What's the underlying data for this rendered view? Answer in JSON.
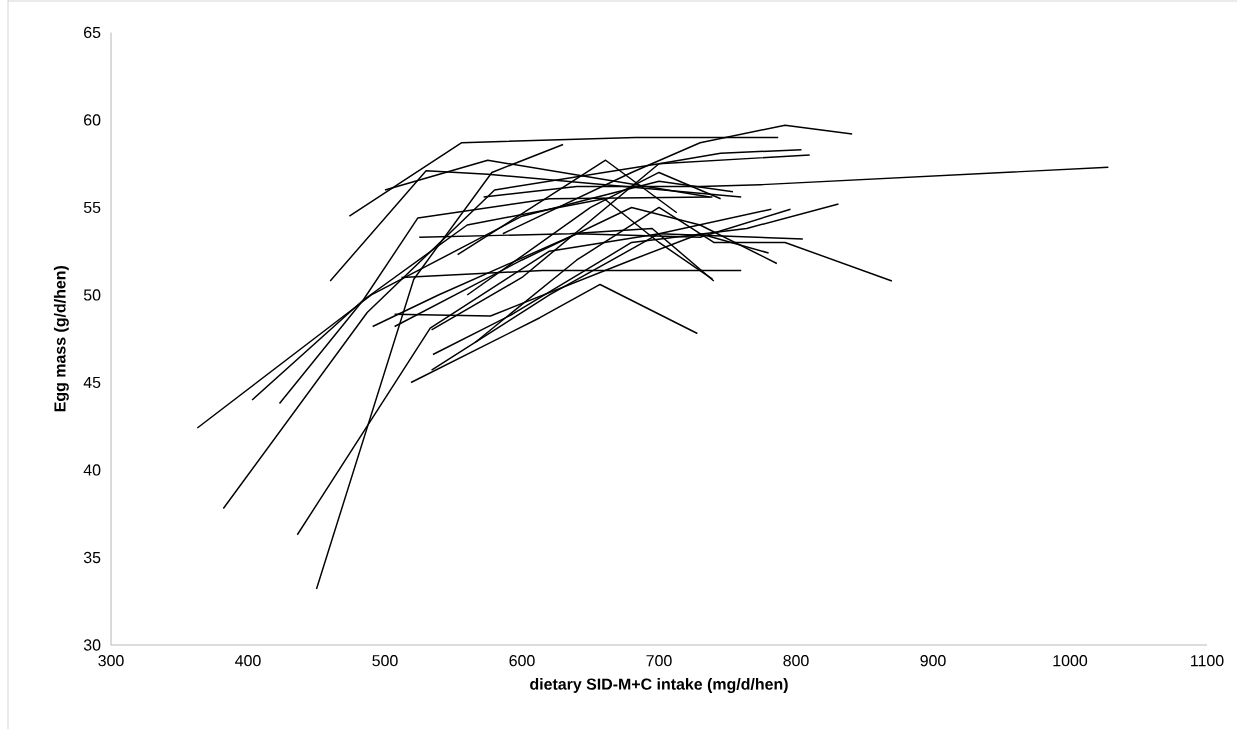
{
  "chart_data": {
    "type": "line",
    "xlabel": "dietary SID-M+C intake (mg/d/hen)",
    "ylabel": "Egg mass (g/d/hen)",
    "xlim": [
      300,
      1100
    ],
    "xticks": [
      300,
      400,
      500,
      600,
      700,
      800,
      900,
      1000,
      1100
    ],
    "ylim": [
      30,
      65
    ],
    "yticks": [
      30,
      35,
      40,
      45,
      50,
      55,
      60,
      65
    ],
    "marker": "none",
    "line_style": "solid",
    "series": [
      {
        "color": "#000000",
        "x": [
          363,
          490,
          600,
          700,
          754
        ],
        "values": [
          42.4,
          50.0,
          54.5,
          56.5,
          55.9
        ]
      },
      {
        "color": "#000000",
        "x": [
          403,
          484,
          524,
          620,
          739
        ],
        "values": [
          44.0,
          49.7,
          54.4,
          55.5,
          55.6
        ]
      },
      {
        "color": "#000000",
        "x": [
          382,
          487,
          580,
          700,
          810
        ],
        "values": [
          37.8,
          49.0,
          56.0,
          57.5,
          58.0
        ]
      },
      {
        "color": "#000000",
        "x": [
          436,
          533,
          620,
          700,
          782
        ],
        "values": [
          36.3,
          48.1,
          52.5,
          53.5,
          54.9
        ]
      },
      {
        "color": "#000000",
        "x": [
          450,
          521,
          578,
          630
        ],
        "values": [
          33.2,
          50.9,
          57.0,
          58.6
        ]
      },
      {
        "color": "#000000",
        "x": [
          474,
          556,
          683,
          787
        ],
        "values": [
          54.5,
          58.7,
          59.0,
          59.0
        ]
      },
      {
        "color": "#000000",
        "x": [
          500,
          575,
          737
        ],
        "values": [
          56.0,
          57.7,
          55.6
        ]
      },
      {
        "color": "#000000",
        "x": [
          460,
          530,
          575,
          760
        ],
        "values": [
          50.8,
          57.1,
          56.9,
          55.6
        ]
      },
      {
        "color": "#000000",
        "x": [
          491,
          539,
          640,
          730,
          796
        ],
        "values": [
          48.2,
          50.0,
          53.5,
          53.3,
          54.9
        ]
      },
      {
        "color": "#000000",
        "x": [
          507,
          577,
          680,
          730,
          780
        ],
        "values": [
          48.9,
          48.8,
          52.0,
          53.5,
          52.4
        ]
      },
      {
        "color": "#000000",
        "x": [
          507,
          600,
          680,
          730,
          786
        ],
        "values": [
          48.2,
          52.0,
          55.0,
          54.0,
          51.8
        ]
      },
      {
        "color": "#000000",
        "x": [
          535,
          593,
          680,
          764,
          831
        ],
        "values": [
          46.6,
          48.9,
          53.0,
          53.8,
          55.2
        ]
      },
      {
        "color": "#000000",
        "x": [
          534,
          620,
          700,
          805
        ],
        "values": [
          45.7,
          50.0,
          53.5,
          53.2
        ]
      },
      {
        "color": "#000000",
        "x": [
          519,
          613,
          657,
          728
        ],
        "values": [
          45.0,
          48.7,
          50.6,
          47.8
        ]
      },
      {
        "color": "#000000",
        "x": [
          566,
          640,
          700,
          740,
          792,
          870
        ],
        "values": [
          47.3,
          52.0,
          55.0,
          53.0,
          53.0,
          50.8
        ]
      },
      {
        "color": "#000000",
        "x": [
          512,
          615,
          760
        ],
        "values": [
          51.0,
          51.4,
          51.4
        ]
      },
      {
        "color": "#000000",
        "x": [
          525,
          635,
          695,
          740
        ],
        "values": [
          53.3,
          53.5,
          53.8,
          50.8
        ]
      },
      {
        "color": "#000000",
        "x": [
          553,
          661,
          713
        ],
        "values": [
          52.3,
          57.7,
          54.7
        ]
      },
      {
        "color": "#000000",
        "x": [
          586,
          680,
          730,
          792,
          841
        ],
        "values": [
          53.5,
          57.0,
          58.7,
          59.7,
          59.2
        ]
      },
      {
        "color": "#000000",
        "x": [
          572,
          640,
          730,
          774,
          1028
        ],
        "values": [
          55.6,
          56.2,
          56.2,
          56.3,
          57.3
        ]
      },
      {
        "color": "#000000",
        "x": [
          423,
          484,
          560,
          660,
          700,
          739
        ],
        "values": [
          43.8,
          49.7,
          54.0,
          55.5,
          53.0,
          50.9
        ]
      },
      {
        "color": "#000000",
        "x": [
          534,
          600,
          700,
          745,
          804
        ],
        "values": [
          48.0,
          51.0,
          57.5,
          58.1,
          58.3
        ]
      },
      {
        "color": "#000000",
        "x": [
          560,
          650,
          700,
          745
        ],
        "values": [
          50.0,
          55.0,
          57.0,
          55.5
        ]
      }
    ]
  }
}
